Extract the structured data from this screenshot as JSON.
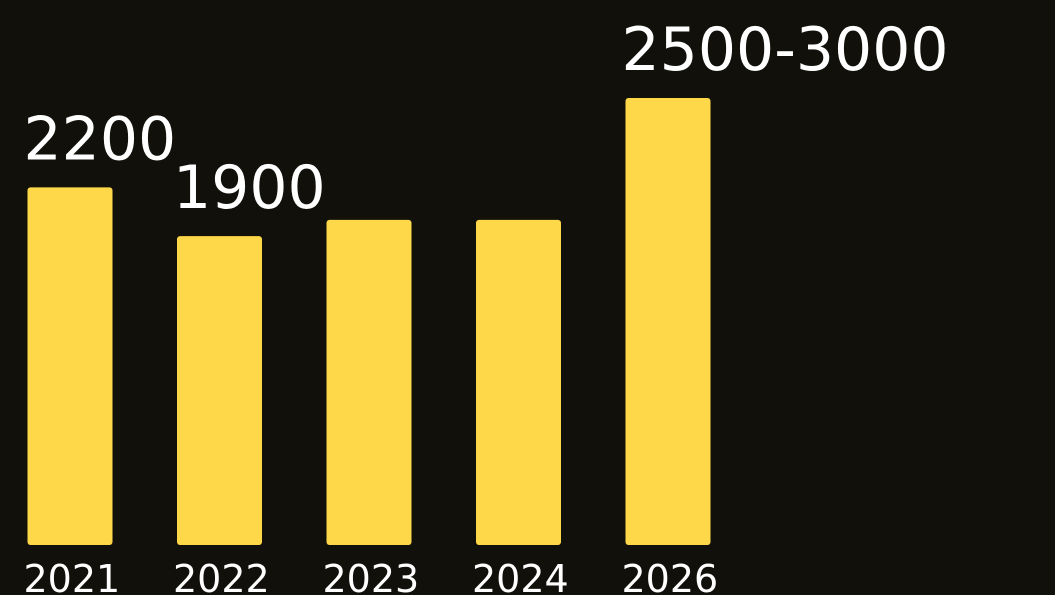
{
  "chart_data": {
    "type": "bar",
    "categories": [
      "2021",
      "2022",
      "2023",
      "2024",
      "2026"
    ],
    "values": [
      2200,
      1900,
      2000,
      2000,
      2750
    ],
    "data_labels": [
      "2200",
      "1900",
      "",
      "",
      "2500-3000"
    ],
    "title": "",
    "xlabel": "",
    "ylabel": "",
    "ylim": [
      0,
      2750
    ],
    "grid": false,
    "legend": "none",
    "colors": {
      "bar": "#FFD84A",
      "label": "#FFFFFF",
      "background": "#11100A"
    }
  }
}
